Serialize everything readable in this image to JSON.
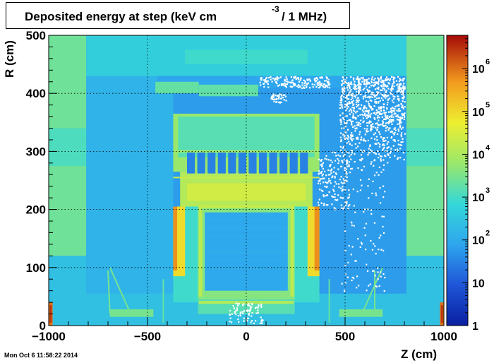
{
  "chart_data": {
    "type": "heatmap",
    "title": "Deposited energy at step (keV cm",
    "title_exponent": "-3",
    "title_tail": "/ 1 MHz)",
    "xlabel": "Z (cm)",
    "ylabel": "R (cm)",
    "xlim": [
      -1000,
      1000
    ],
    "ylim": [
      0,
      500
    ],
    "x_ticks": [
      {
        "value": -1000,
        "label": "−1000"
      },
      {
        "value": -500,
        "label": "−500"
      },
      {
        "value": 0,
        "label": "0"
      },
      {
        "value": 500,
        "label": "500"
      },
      {
        "value": 1000,
        "label": "1000"
      }
    ],
    "y_ticks": [
      {
        "value": 0,
        "label": "0"
      },
      {
        "value": 100,
        "label": "100"
      },
      {
        "value": 200,
        "label": "200"
      },
      {
        "value": 300,
        "label": "300"
      },
      {
        "value": 400,
        "label": "400"
      },
      {
        "value": 500,
        "label": "500"
      }
    ],
    "grid": true,
    "colorbar": {
      "scale": "log",
      "range": [
        1,
        6000000
      ],
      "ticks": [
        {
          "value": 1,
          "base": "1",
          "exp": ""
        },
        {
          "value": 10,
          "base": "10",
          "exp": ""
        },
        {
          "value": 100,
          "base": "10",
          "exp": "2"
        },
        {
          "value": 1000,
          "base": "10",
          "exp": "3"
        },
        {
          "value": 10000,
          "base": "10",
          "exp": "4"
        },
        {
          "value": 100000,
          "base": "10",
          "exp": "5"
        },
        {
          "value": 1000000,
          "base": "10",
          "exp": "6"
        }
      ]
    },
    "regions": [
      {
        "name": "background-fill",
        "z": [
          -1000,
          1000
        ],
        "r": [
          0,
          500
        ],
        "v": 60
      },
      {
        "name": "endcap-left-outer",
        "z": [
          -1000,
          -810
        ],
        "r": [
          120,
          500
        ],
        "v": 2500
      },
      {
        "name": "endcap-right-outer",
        "z": [
          810,
          1000
        ],
        "r": [
          120,
          500
        ],
        "v": 2500
      },
      {
        "name": "endcap-left-band",
        "z": [
          -1000,
          -810
        ],
        "r": [
          275,
          340
        ],
        "v": 1200
      },
      {
        "name": "endcap-right-band",
        "z": [
          810,
          1000
        ],
        "r": [
          275,
          340
        ],
        "v": 1200
      },
      {
        "name": "endcap-left-inner",
        "z": [
          -1000,
          -810
        ],
        "r": [
          0,
          120
        ],
        "v": 250
      },
      {
        "name": "endcap-right-inner",
        "z": [
          810,
          1000
        ],
        "r": [
          0,
          120
        ],
        "v": 250
      },
      {
        "name": "cavern-top-band",
        "z": [
          -810,
          810
        ],
        "r": [
          430,
          500
        ],
        "v": 450
      },
      {
        "name": "shaft-top-highlight",
        "z": [
          -310,
          310
        ],
        "r": [
          450,
          475
        ],
        "v": 900
      },
      {
        "name": "muon-region-left",
        "z": [
          -810,
          -370
        ],
        "r": [
          0,
          430
        ],
        "v": 140
      },
      {
        "name": "muon-region-right",
        "z": [
          370,
          810
        ],
        "r": [
          0,
          430
        ],
        "v": 60
      },
      {
        "name": "floor-band",
        "z": [
          -1000,
          1000
        ],
        "r": [
          0,
          55
        ],
        "v": 250
      },
      {
        "name": "solenoid-outer-yellow",
        "z": [
          -370,
          370
        ],
        "r": [
          265,
          365
        ],
        "v": 6000
      },
      {
        "name": "solenoid-inner-gap",
        "z": [
          -345,
          345
        ],
        "r": [
          290,
          360
        ],
        "v": 1500
      },
      {
        "name": "calorimeter-ring",
        "z": [
          -335,
          335
        ],
        "r": [
          205,
          265
        ],
        "v": 12000
      },
      {
        "name": "calorimeter-ring-core",
        "z": [
          -300,
          300
        ],
        "r": [
          215,
          245
        ],
        "v": 25000
      },
      {
        "name": "barrel-body",
        "z": [
          -370,
          370
        ],
        "r": [
          40,
          205
        ],
        "v": 900
      },
      {
        "name": "endcap-cal-left",
        "z": [
          -370,
          -310
        ],
        "r": [
          85,
          205
        ],
        "v": 90000
      },
      {
        "name": "endcap-cal-right",
        "z": [
          310,
          370
        ],
        "r": [
          85,
          205
        ],
        "v": 90000
      },
      {
        "name": "tracker-frame",
        "z": [
          -245,
          245
        ],
        "r": [
          45,
          205
        ],
        "v": 4000
      },
      {
        "name": "tracker-volume",
        "z": [
          -210,
          210
        ],
        "r": [
          60,
          195
        ],
        "v": 90
      },
      {
        "name": "inner-detector-base",
        "z": [
          -245,
          245
        ],
        "r": [
          20,
          45
        ],
        "v": 1500
      },
      {
        "name": "forward-shield-left",
        "z": [
          -1000,
          -980
        ],
        "r": [
          0,
          40
        ],
        "v": 1000000
      },
      {
        "name": "forward-shield-right",
        "z": [
          980,
          1000
        ],
        "r": [
          0,
          40
        ],
        "v": 1000000
      },
      {
        "name": "forward-ring-left",
        "z": [
          -995,
          -985
        ],
        "r": [
          5,
          35
        ],
        "v": 3000000
      },
      {
        "name": "forward-ring-right",
        "z": [
          985,
          995
        ],
        "r": [
          5,
          35
        ],
        "v": 3000000
      },
      {
        "name": "beam-struct-left",
        "z": [
          -690,
          -470
        ],
        "r": [
          15,
          28
        ],
        "v": 3000
      },
      {
        "name": "beam-struct-right",
        "z": [
          470,
          690
        ],
        "r": [
          15,
          28
        ],
        "v": 3000
      },
      {
        "name": "top-structure",
        "z": [
          -450,
          580
        ],
        "r": [
          410,
          430
        ],
        "v": 80
      },
      {
        "name": "shaft-cap-a",
        "z": [
          -460,
          -240
        ],
        "r": [
          400,
          420
        ],
        "v": 2000
      },
      {
        "name": "shaft-cap-b",
        "z": [
          -240,
          60
        ],
        "r": [
          395,
          415
        ],
        "v": 1800
      }
    ]
  }
}
